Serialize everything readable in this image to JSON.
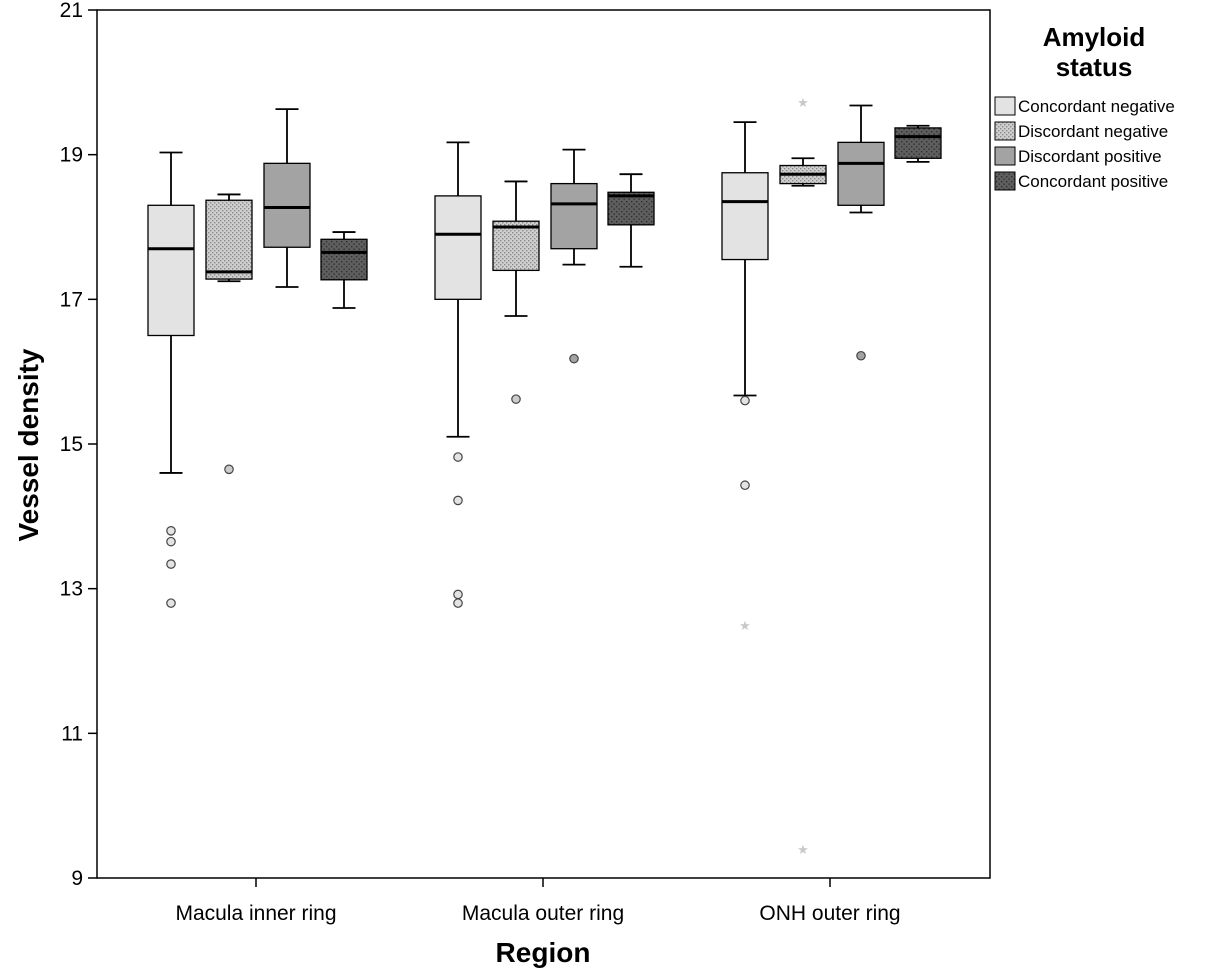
{
  "chart_data": {
    "type": "box",
    "xlabel": "Region",
    "ylabel": "Vessel density",
    "ylim": [
      9,
      21
    ],
    "yticks": [
      9,
      11,
      13,
      15,
      17,
      19,
      21
    ],
    "categories": [
      "Macula inner ring",
      "Macula outer ring",
      "ONH outer ring"
    ],
    "legend": {
      "title_lines": [
        "Amyloid",
        "status"
      ],
      "position": "right-top"
    },
    "series": [
      {
        "name": "Concordant negative",
        "fill": "#e3e3e3",
        "pattern": "solid",
        "boxes": [
          {
            "min": 14.6,
            "q1": 16.5,
            "median": 17.7,
            "q3": 18.3,
            "max": 19.03,
            "outliers": [
              13.8,
              13.65,
              13.34,
              12.8
            ],
            "extremes": []
          },
          {
            "min": 15.1,
            "q1": 17.0,
            "median": 17.9,
            "q3": 18.43,
            "max": 19.17,
            "outliers": [
              14.82,
              14.22,
              12.92,
              12.8
            ],
            "extremes": []
          },
          {
            "min": 15.67,
            "q1": 17.55,
            "median": 18.35,
            "q3": 18.75,
            "max": 19.45,
            "outliers": [
              15.6,
              14.43
            ],
            "extremes": [
              12.5
            ]
          }
        ]
      },
      {
        "name": "Discordant negative",
        "fill": "#cccccc",
        "pattern": "dots",
        "boxes": [
          {
            "min": 17.25,
            "q1": 17.28,
            "median": 17.38,
            "q3": 18.37,
            "max": 18.45,
            "outliers": [
              14.65
            ],
            "extremes": []
          },
          {
            "min": 16.77,
            "q1": 17.4,
            "median": 18.0,
            "q3": 18.08,
            "max": 18.63,
            "outliers": [
              15.62
            ],
            "extremes": []
          },
          {
            "min": 18.57,
            "q1": 18.6,
            "median": 18.73,
            "q3": 18.85,
            "max": 18.95,
            "outliers": [],
            "extremes": [
              19.73,
              9.4
            ]
          }
        ]
      },
      {
        "name": "Discordant positive",
        "fill": "#a3a3a3",
        "pattern": "solid",
        "boxes": [
          {
            "min": 17.17,
            "q1": 17.72,
            "median": 18.27,
            "q3": 18.88,
            "max": 19.63,
            "outliers": [],
            "extremes": []
          },
          {
            "min": 17.48,
            "q1": 17.7,
            "median": 18.32,
            "q3": 18.6,
            "max": 19.07,
            "outliers": [
              16.18
            ],
            "extremes": []
          },
          {
            "min": 18.2,
            "q1": 18.3,
            "median": 18.88,
            "q3": 19.17,
            "max": 19.68,
            "outliers": [
              16.22
            ],
            "extremes": []
          }
        ]
      },
      {
        "name": "Concordant positive",
        "fill": "#5e5e5e",
        "pattern": "dots",
        "boxes": [
          {
            "min": 16.88,
            "q1": 17.27,
            "median": 17.65,
            "q3": 17.83,
            "max": 17.93,
            "outliers": [],
            "extremes": []
          },
          {
            "min": 17.45,
            "q1": 18.03,
            "median": 18.43,
            "q3": 18.48,
            "max": 18.73,
            "outliers": [],
            "extremes": []
          },
          {
            "min": 18.9,
            "q1": 18.95,
            "median": 19.25,
            "q3": 19.37,
            "max": 19.4,
            "outliers": [],
            "extremes": []
          }
        ]
      }
    ]
  }
}
